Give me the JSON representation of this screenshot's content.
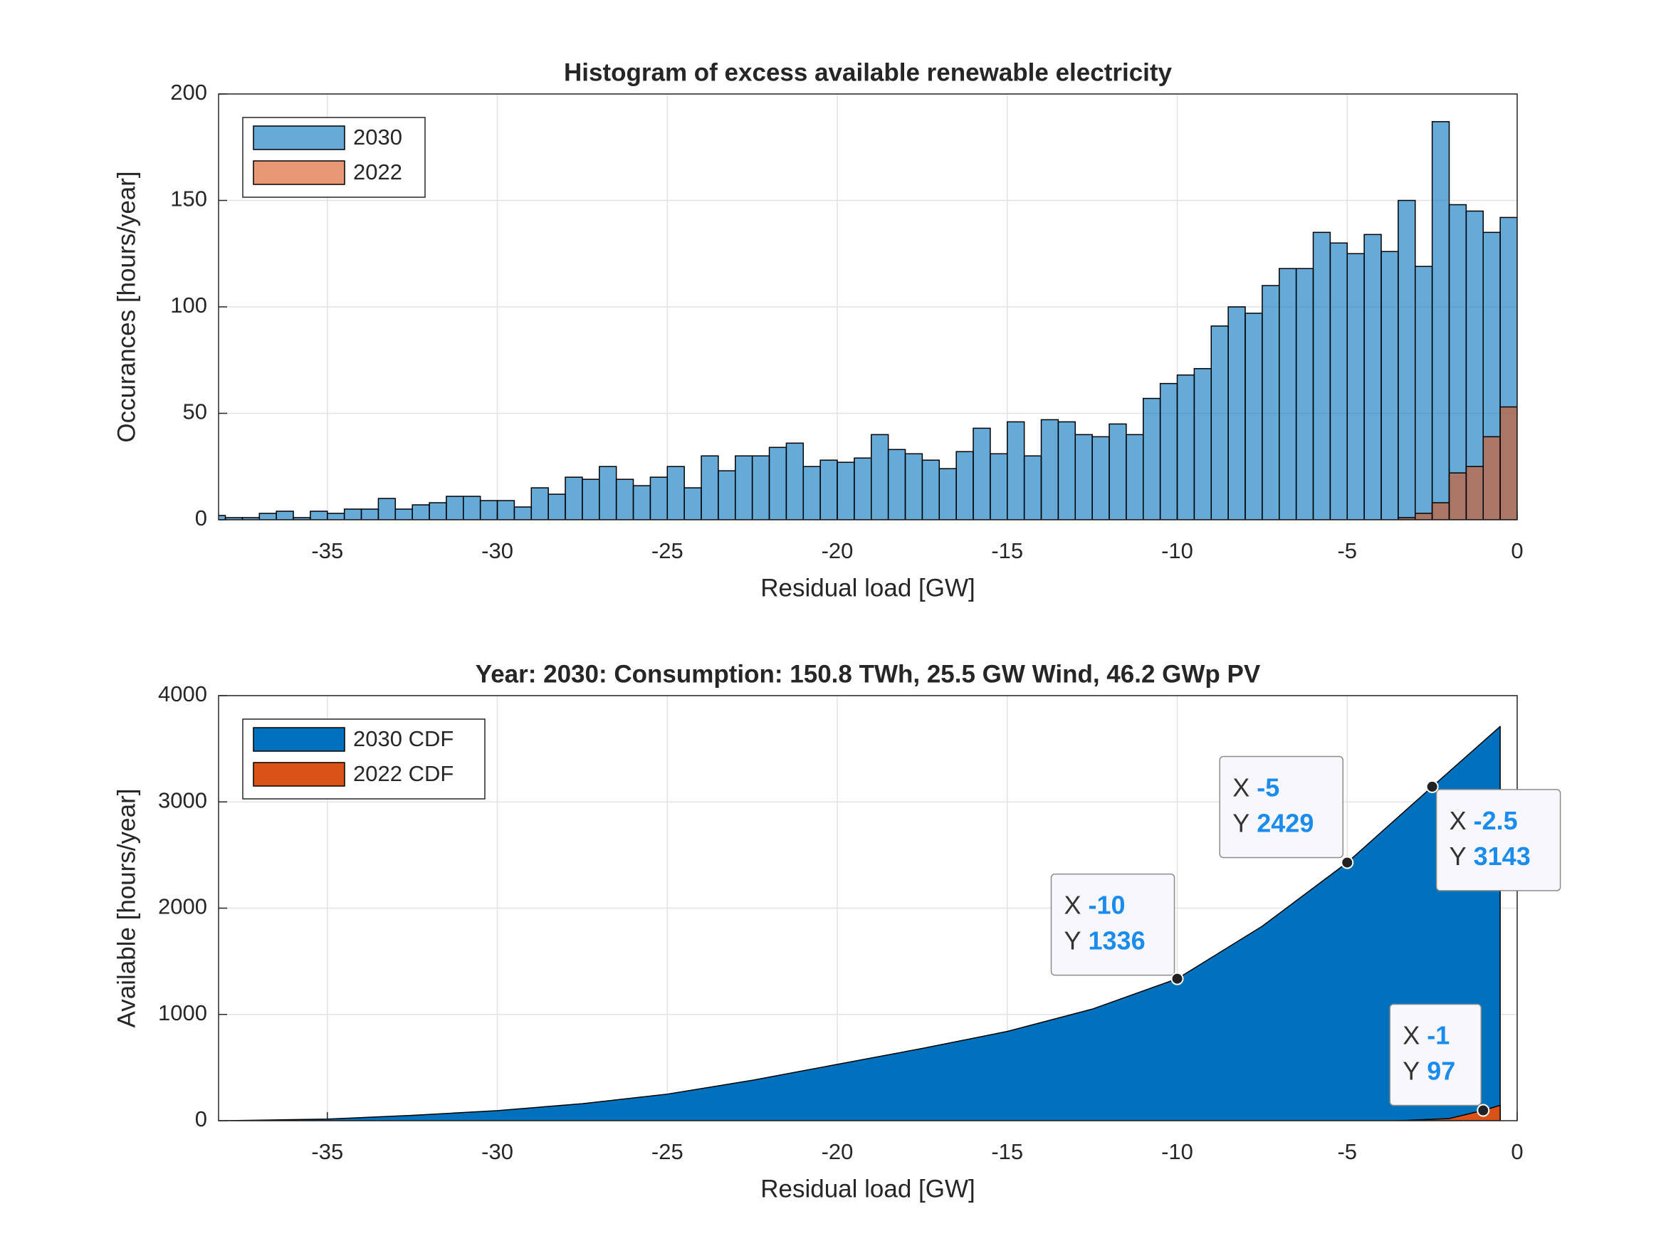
{
  "chart_data": [
    {
      "type": "histogram",
      "title": "Histogram of excess available renewable electricity",
      "xlabel": "Residual load [GW]",
      "ylabel": "Occurances [hours/year]",
      "bins": [
        -38.5,
        -38,
        -37.5,
        -37,
        -36.5,
        -36,
        -35.5,
        -35,
        -34.5,
        -34,
        -33.5,
        -33,
        -32.5,
        -32,
        -31.5,
        -31,
        -30.5,
        -30,
        -29.5,
        -29,
        -28.5,
        -28,
        -27.5,
        -27,
        -26.5,
        -26,
        -25.5,
        -25,
        -24.5,
        -24,
        -23.5,
        -23,
        -22.5,
        -22,
        -21.5,
        -21,
        -20.5,
        -20,
        -19.5,
        -19,
        -18.5,
        -18,
        -17.5,
        -17,
        -16.5,
        -16,
        -15.5,
        -15,
        -14.5,
        -14,
        -13.5,
        -13,
        -12.5,
        -12,
        -11.5,
        -11,
        -10.5,
        -10,
        -9.5,
        -9,
        -8.5,
        -8,
        -7.5,
        -7,
        -6.5,
        -6,
        -5.5,
        -5,
        -4.5,
        -4,
        -3.5,
        -3,
        -2.5,
        -2,
        -1.5,
        -1,
        -0.5,
        0
      ],
      "series": [
        {
          "name": "2030",
          "color": "#0072bd",
          "values": [
            2,
            1,
            1,
            3,
            4,
            1,
            4,
            3,
            5,
            5,
            10,
            5,
            7,
            8,
            11,
            11,
            9,
            9,
            6,
            15,
            12,
            20,
            19,
            25,
            19,
            16,
            20,
            25,
            15,
            30,
            23,
            30,
            30,
            34,
            36,
            25,
            28,
            27,
            29,
            40,
            33,
            31,
            28,
            24,
            32,
            43,
            31,
            46,
            30,
            47,
            46,
            40,
            39,
            45,
            40,
            57,
            64,
            68,
            71,
            91,
            100,
            97,
            110,
            118,
            118,
            135,
            130,
            125,
            134,
            126,
            150,
            119,
            187,
            148,
            145,
            135,
            142
          ]
        },
        {
          "name": "2022",
          "color": "#d95319",
          "values": [
            0,
            0,
            0,
            0,
            0,
            0,
            0,
            0,
            0,
            0,
            0,
            0,
            0,
            0,
            0,
            0,
            0,
            0,
            0,
            0,
            0,
            0,
            0,
            0,
            0,
            0,
            0,
            0,
            0,
            0,
            0,
            0,
            0,
            0,
            0,
            0,
            0,
            0,
            0,
            0,
            0,
            0,
            0,
            0,
            0,
            0,
            0,
            0,
            0,
            0,
            0,
            0,
            0,
            0,
            0,
            0,
            0,
            0,
            0,
            0,
            0,
            0,
            0,
            0,
            0,
            0,
            0,
            0,
            0,
            0,
            1,
            3,
            8,
            22,
            25,
            39,
            53
          ]
        }
      ],
      "face_alpha": 0.6,
      "xlim": [
        -38.2,
        0
      ],
      "ylim": [
        0,
        200
      ],
      "xticks": [
        -35,
        -30,
        -25,
        -20,
        -15,
        -10,
        -5,
        0
      ],
      "yticks": [
        0,
        50,
        100,
        150,
        200
      ],
      "grid": true,
      "legend": "northwest"
    },
    {
      "type": "area",
      "title": "Year: 2030: Consumption: 150.8 TWh, 25.5 GW Wind, 46.2 GWp PV",
      "xlabel": "Residual load [GW]",
      "ylabel": "Available [hours/year]",
      "series": [
        {
          "name": "2030 CDF",
          "color": "#0072bd",
          "x": [
            -38,
            -35,
            -32.5,
            -30,
            -27.5,
            -25,
            -22.5,
            -20,
            -17.5,
            -15,
            -12.5,
            -10,
            -7.5,
            -5,
            -2.5,
            -0.5
          ],
          "values": [
            0,
            15,
            50,
            95,
            160,
            250,
            380,
            530,
            680,
            840,
            1050,
            1336,
            1830,
            2429,
            3143,
            3710
          ]
        },
        {
          "name": "2022 CDF",
          "color": "#d95319",
          "x": [
            -3.5,
            -2,
            -1,
            -0.5
          ],
          "values": [
            0,
            20,
            97,
            145
          ]
        }
      ],
      "datatip_labels": [
        "X",
        "Y"
      ],
      "datatips": [
        {
          "x": -10,
          "y": 1336
        },
        {
          "x": -5,
          "y": 2429
        },
        {
          "x": -2.5,
          "y": 3143
        },
        {
          "x": -1,
          "y": 97
        }
      ],
      "xlim": [
        -38.2,
        0
      ],
      "ylim": [
        0,
        4000
      ],
      "xticks": [
        -35,
        -30,
        -25,
        -20,
        -15,
        -10,
        -5,
        0
      ],
      "yticks": [
        0,
        1000,
        2000,
        3000,
        4000
      ],
      "grid": true,
      "legend": "northwest"
    }
  ]
}
